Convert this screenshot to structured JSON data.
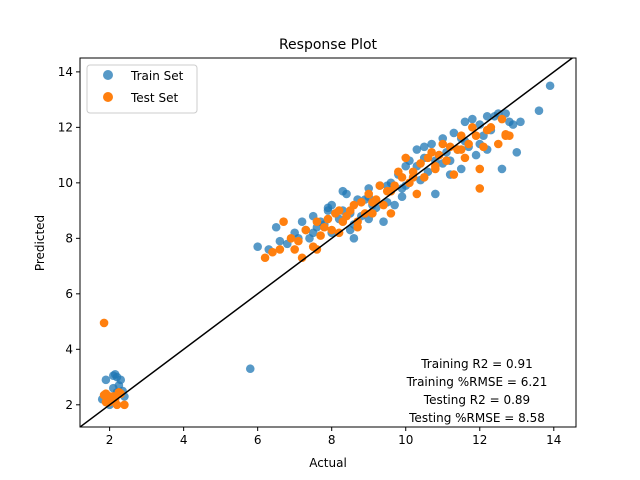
{
  "chart_data": {
    "type": "scatter",
    "title": "Response Plot",
    "xlabel": "Actual",
    "ylabel": "Predicted",
    "xlim": [
      1.2,
      14.6
    ],
    "ylim": [
      1.2,
      14.5
    ],
    "x_ticks": [
      "2",
      "4",
      "6",
      "8",
      "10",
      "12",
      "14"
    ],
    "y_ticks": [
      "2",
      "4",
      "6",
      "8",
      "10",
      "12",
      "14"
    ],
    "grid": false,
    "legend_position": "top-left",
    "reference_line": {
      "type": "identity",
      "color": "#000000"
    },
    "annotations": [
      "Training R2 = 0.91",
      "Training %RMSE = 6.21",
      "Testing R2 = 0.89",
      "Testing %RMSE = 8.58"
    ],
    "series": [
      {
        "name": "Train Set",
        "color": "#1f77b4",
        "x": [
          1.8,
          1.9,
          2.0,
          2.1,
          2.15,
          2.2,
          2.25,
          2.3,
          2.35,
          2.4,
          2.2,
          2.1,
          5.8,
          6.0,
          6.3,
          6.5,
          6.6,
          6.8,
          7.0,
          7.1,
          7.2,
          7.3,
          7.4,
          7.5,
          7.5,
          7.6,
          7.7,
          7.8,
          7.9,
          8.0,
          8.0,
          8.1,
          8.2,
          8.3,
          8.4,
          8.5,
          8.5,
          8.6,
          8.7,
          8.8,
          8.9,
          9.0,
          9.0,
          9.1,
          9.2,
          9.3,
          9.4,
          9.5,
          9.5,
          9.6,
          9.7,
          9.8,
          9.9,
          10.0,
          10.0,
          10.1,
          10.2,
          10.3,
          10.4,
          10.5,
          10.5,
          10.6,
          10.7,
          10.8,
          10.9,
          11.0,
          11.0,
          11.1,
          11.2,
          11.3,
          11.4,
          11.5,
          11.5,
          11.6,
          11.7,
          11.8,
          11.9,
          12.0,
          12.0,
          12.1,
          12.2,
          12.3,
          12.4,
          12.5,
          12.6,
          12.7,
          12.8,
          12.9,
          13.0,
          13.1,
          13.6,
          13.9,
          8.6,
          9.0,
          10.8,
          11.6,
          11.2,
          10.3,
          9.9,
          8.3,
          7.9,
          12.2
        ],
        "y": [
          2.2,
          2.9,
          2.0,
          3.05,
          3.1,
          3.0,
          2.7,
          2.9,
          2.5,
          2.3,
          2.45,
          2.6,
          3.3,
          7.7,
          7.6,
          8.4,
          7.9,
          7.8,
          8.2,
          8.0,
          8.6,
          8.3,
          8.0,
          8.8,
          8.2,
          8.4,
          8.6,
          8.5,
          9.0,
          9.2,
          8.2,
          8.9,
          8.7,
          9.0,
          9.6,
          8.3,
          8.9,
          8.5,
          9.4,
          8.8,
          9.4,
          8.7,
          9.5,
          9.2,
          9.1,
          9.9,
          8.6,
          9.3,
          9.9,
          10.0,
          9.2,
          10.3,
          9.8,
          10.6,
          9.9,
          10.8,
          10.2,
          10.6,
          10.1,
          10.9,
          11.3,
          10.4,
          11.4,
          10.8,
          11.0,
          11.6,
          10.7,
          11.1,
          10.3,
          11.8,
          11.2,
          11.6,
          10.5,
          12.2,
          11.3,
          12.3,
          11.0,
          12.1,
          11.4,
          11.7,
          11.2,
          11.9,
          12.4,
          12.5,
          10.5,
          12.5,
          12.2,
          12.1,
          11.1,
          12.2,
          12.6,
          13.5,
          8.0,
          9.8,
          9.6,
          11.5,
          10.8,
          11.2,
          9.5,
          9.7,
          9.1,
          12.4
        ]
      },
      {
        "name": "Test Set",
        "color": "#ff7f0e",
        "x": [
          1.85,
          1.9,
          2.0,
          2.1,
          2.2,
          2.3,
          2.4,
          2.0,
          2.25,
          2.15,
          1.9,
          1.85,
          6.2,
          6.4,
          6.6,
          6.7,
          6.9,
          7.0,
          7.1,
          7.2,
          7.3,
          7.5,
          7.6,
          7.7,
          7.8,
          7.9,
          8.0,
          8.1,
          8.2,
          8.3,
          8.4,
          8.5,
          8.6,
          8.7,
          8.8,
          8.9,
          9.0,
          9.1,
          9.2,
          9.3,
          9.4,
          9.5,
          9.6,
          9.7,
          9.8,
          9.9,
          10.0,
          10.1,
          10.2,
          10.3,
          10.4,
          10.5,
          10.6,
          10.7,
          10.8,
          10.9,
          11.0,
          11.1,
          11.2,
          11.3,
          11.4,
          11.5,
          11.6,
          11.7,
          11.8,
          11.9,
          12.0,
          12.1,
          12.2,
          12.3,
          12.5,
          12.6,
          12.7,
          12.8,
          12.0,
          11.5,
          10.8,
          10.2,
          9.6,
          9.1,
          8.7,
          8.2,
          7.6,
          12.7
        ],
        "y": [
          4.95,
          2.4,
          2.1,
          2.3,
          2.0,
          2.4,
          2.0,
          2.3,
          2.45,
          2.2,
          2.1,
          2.35,
          7.3,
          7.5,
          7.6,
          8.6,
          8.0,
          7.6,
          7.9,
          7.3,
          8.3,
          7.7,
          8.6,
          8.1,
          8.4,
          8.7,
          8.3,
          8.9,
          9.0,
          8.6,
          8.8,
          9.0,
          9.2,
          8.4,
          9.3,
          8.9,
          9.6,
          8.9,
          9.4,
          9.9,
          9.2,
          9.7,
          8.9,
          9.9,
          10.4,
          10.2,
          10.9,
          10.0,
          10.4,
          9.6,
          10.7,
          10.2,
          10.9,
          11.1,
          10.6,
          11.0,
          11.4,
          10.8,
          11.3,
          10.3,
          11.2,
          11.7,
          10.9,
          11.4,
          12.0,
          11.7,
          9.8,
          11.3,
          11.9,
          12.0,
          11.4,
          12.3,
          11.7,
          11.7,
          10.5,
          11.2,
          10.5,
          10.2,
          9.7,
          9.3,
          8.6,
          8.2,
          7.6,
          11.75
        ]
      }
    ]
  }
}
